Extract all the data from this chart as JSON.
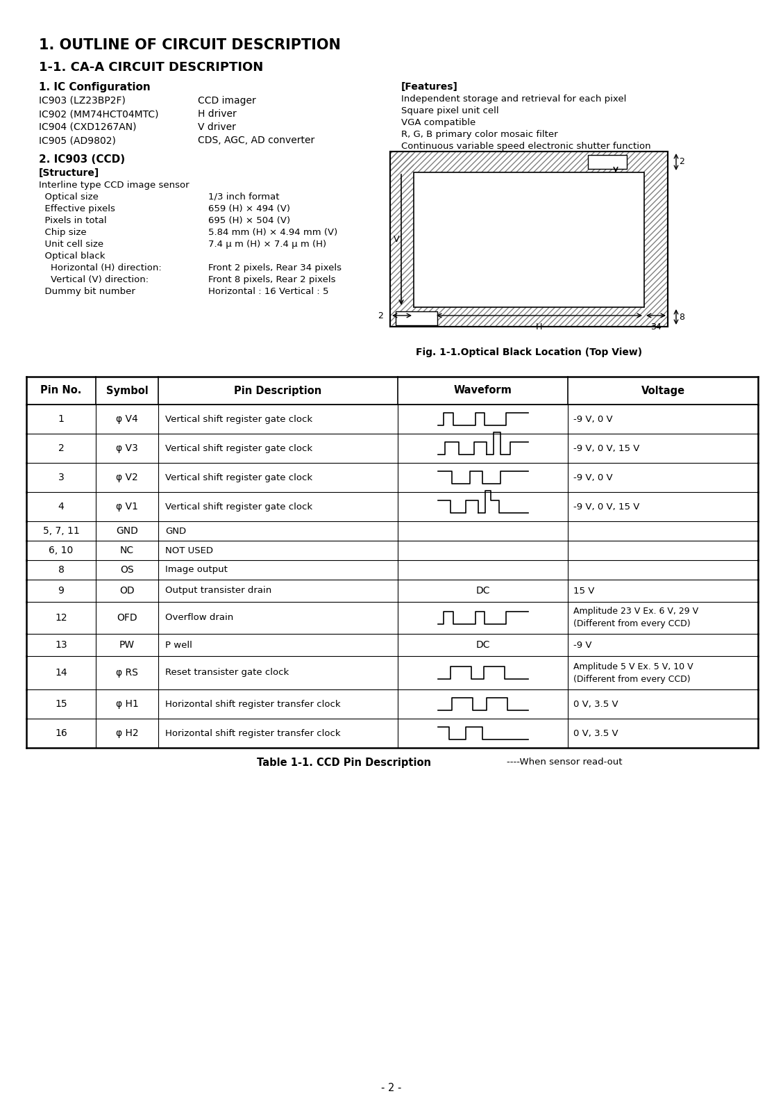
{
  "title1": "1. OUTLINE OF CIRCUIT DESCRIPTION",
  "title2": "1-1. CA-A CIRCUIT DESCRIPTION",
  "section1_title": "1. IC Configuration",
  "ic_config": [
    [
      "IC903 (LZ23BP2F)",
      "CCD imager"
    ],
    [
      "IC902 (MM74HCT04MTC)",
      "H driver"
    ],
    [
      "IC904 (CXD1267AN)",
      "V driver"
    ],
    [
      "IC905 (AD9802)",
      "CDS, AGC, AD converter"
    ]
  ],
  "section2_title": "2. IC903 (CCD)",
  "structure_title": "[Structure]",
  "structure_items": [
    [
      "Interline type CCD image sensor",
      ""
    ],
    [
      "  Optical size",
      "1/3 inch format"
    ],
    [
      "  Effective pixels",
      "659 (H) × 494 (V)"
    ],
    [
      "  Pixels in total",
      "695 (H) × 504 (V)"
    ],
    [
      "  Chip size",
      "5.84 mm (H) × 4.94 mm (V)"
    ],
    [
      "  Unit cell size",
      "7.4 μ m (H) × 7.4 μ m (H)"
    ],
    [
      "  Optical black",
      ""
    ],
    [
      "    Horizontal (H) direction:",
      "Front 2 pixels, Rear 34 pixels"
    ],
    [
      "    Vertical (V) direction:",
      "Front 8 pixels, Rear 2 pixels"
    ],
    [
      "  Dummy bit number",
      "Horizontal : 16 Vertical : 5"
    ]
  ],
  "features_title": "[Features]",
  "features": [
    "Independent storage and retrieval for each pixel",
    "Square pixel unit cell",
    "VGA compatible",
    "R, G, B primary color mosaic filter",
    "Continuous variable speed electronic shutter function"
  ],
  "fig_caption": "Fig. 1-1.Optical Black Location (Top View)",
  "table_headers": [
    "Pin No.",
    "Symbol",
    "Pin Description",
    "Waveform",
    "Voltage"
  ],
  "table_rows": [
    [
      "1",
      "φ V4",
      "Vertical shift register gate clock",
      "sq_high",
      "-9 V, 0 V"
    ],
    [
      "2",
      "φ V3",
      "Vertical shift register gate clock",
      "sq_high2",
      "-9 V, 0 V, 15 V"
    ],
    [
      "3",
      "φ V2",
      "Vertical shift register gate clock",
      "sq_low",
      "-9 V, 0 V"
    ],
    [
      "4",
      "φ V1",
      "Vertical shift register gate clock",
      "sq_low2",
      "-9 V, 0 V, 15 V"
    ],
    [
      "5, 7, 11",
      "GND",
      "GND",
      "",
      ""
    ],
    [
      "6, 10",
      "NC",
      "NOT USED",
      "",
      ""
    ],
    [
      "8",
      "OS",
      "Image output",
      "",
      ""
    ],
    [
      "9",
      "OD",
      "Output transister drain",
      "DC",
      "15 V"
    ],
    [
      "12",
      "OFD",
      "Overflow drain",
      "sq_high",
      "Amplitude 23 V Ex. 6 V, 29 V\n(Different from every CCD)"
    ],
    [
      "13",
      "PW",
      "P well",
      "DC",
      "-9 V"
    ],
    [
      "14",
      "φ RS",
      "Reset transister gate clock",
      "sq_tri",
      "Amplitude 5 V Ex. 5 V, 10 V\n(Different from every CCD)"
    ],
    [
      "15",
      "φ H1",
      "Horizontal shift register transfer clock",
      "sq_tri2",
      "0 V, 3.5 V"
    ],
    [
      "16",
      "φ H2",
      "Horizontal shift register transfer clock",
      "sq_low3",
      "0 V, 3.5 V"
    ]
  ],
  "table_caption": "Table 1-1. CCD Pin Description",
  "table_note": "----When sensor read-out",
  "page_num": "- 2 -",
  "bg_color": "#ffffff"
}
